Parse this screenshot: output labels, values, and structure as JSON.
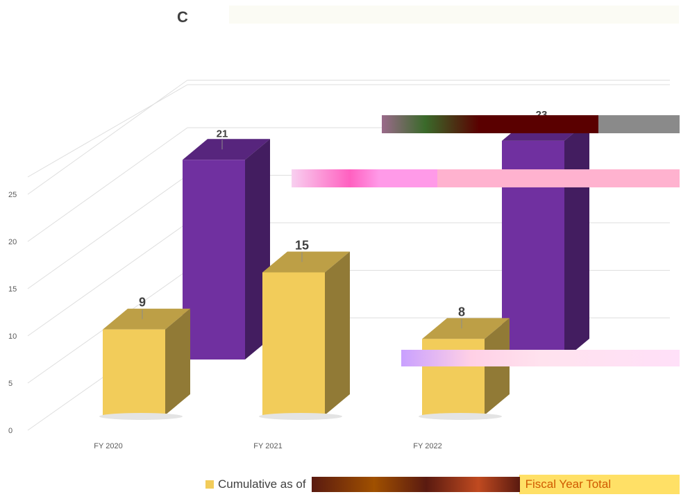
{
  "chart_data": {
    "type": "bar",
    "title": "C",
    "categories": [
      "FY 2020",
      "FY 2021",
      "FY 2022"
    ],
    "series": [
      {
        "name": "Cumulative as of",
        "color": "#f2cc5a",
        "values": [
          9,
          15,
          8
        ]
      },
      {
        "name": "Fiscal Year Total",
        "color": "#7030a0",
        "values": [
          21,
          null,
          23
        ]
      }
    ],
    "y_ticks": [
      0,
      5,
      10,
      15,
      20,
      25
    ],
    "ylim": [
      0,
      30
    ],
    "grid": true,
    "legend_position": "bottom"
  }
}
